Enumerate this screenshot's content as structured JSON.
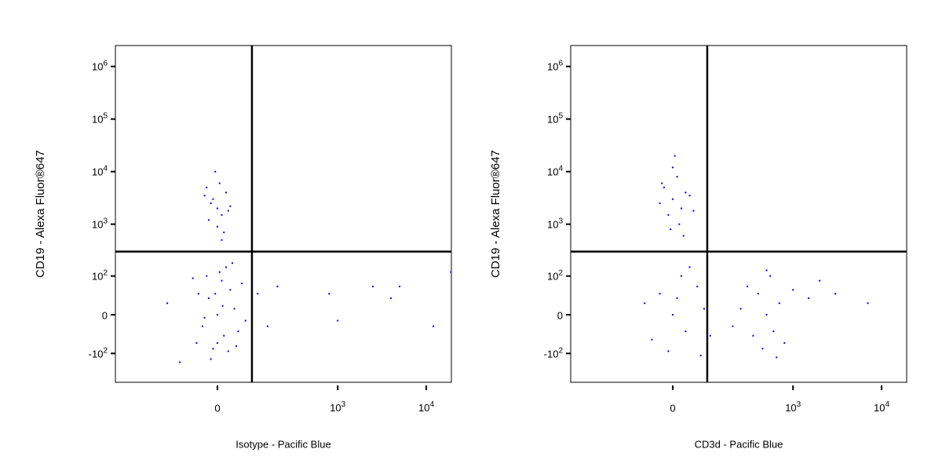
{
  "chart_data": [
    {
      "type": "scatter",
      "xlabel": "Isotype - Pacific Blue",
      "ylabel": "CD19 - Alexa Fluor®647",
      "color": "#0000ff",
      "xscale": "biexponential",
      "yscale": "biexponential",
      "xlim": [
        -620,
        19200
      ],
      "ylim": [
        -365,
        2500000
      ],
      "xticks": [
        0,
        {
          "value": 1000,
          "label": "10",
          "exponent": "3"
        },
        {
          "value": 10000,
          "label": "10",
          "exponent": "4"
        }
      ],
      "yticks": [
        {
          "value": 1000000,
          "label": "10",
          "exponent": "6"
        },
        {
          "value": 100000,
          "label": "10",
          "exponent": "5"
        },
        {
          "value": 10000,
          "label": "10",
          "exponent": "4"
        },
        {
          "value": 1000,
          "label": "10",
          "exponent": "3"
        },
        {
          "value": 100,
          "label": "10",
          "exponent": "2"
        },
        0,
        {
          "value": -100,
          "label": "-10",
          "exponent": "2"
        }
      ],
      "quadrant_gate": {
        "x": 90,
        "y": 300
      },
      "x": [
        0,
        -20,
        15,
        30,
        -35,
        10,
        -10,
        40,
        -45,
        25,
        5,
        -25,
        50,
        -50,
        60,
        20,
        -15,
        70,
        -60,
        35,
        0,
        -5,
        12,
        -30,
        45,
        110,
        150,
        200,
        -150,
        -100,
        0,
        -10,
        10,
        20,
        -20,
        5,
        -15,
        25,
        0,
        -5,
        15,
        -25,
        30,
        -30,
        10,
        800,
        2500,
        4000,
        5000,
        1000,
        12000,
        19000
      ],
      "values": [
        0,
        30,
        -40,
        50,
        -20,
        80,
        -80,
        10,
        40,
        -90,
        120,
        100,
        -30,
        -60,
        70,
        150,
        -130,
        -10,
        90,
        180,
        -60,
        40,
        15,
        -5,
        -70,
        40,
        -20,
        60,
        20,
        -150,
        2000,
        3000,
        1500,
        4000,
        1200,
        6000,
        2500,
        1800,
        900,
        10000,
        700,
        5000,
        2200,
        3500,
        500,
        40,
        60,
        30,
        60,
        -10,
        -20,
        120
      ]
    },
    {
      "type": "scatter",
      "xlabel": "CD3d - Pacific Blue",
      "ylabel": "CD19 - Alexa Fluor®647",
      "color": "#0000ff",
      "xscale": "biexponential",
      "yscale": "biexponential",
      "xlim": [
        -620,
        19200
      ],
      "ylim": [
        -365,
        2500000
      ],
      "xticks": [
        0,
        {
          "value": 1000,
          "label": "10",
          "exponent": "3"
        },
        {
          "value": 10000,
          "label": "10",
          "exponent": "4"
        }
      ],
      "yticks": [
        {
          "value": 1000000,
          "label": "10",
          "exponent": "6"
        },
        {
          "value": 100000,
          "label": "10",
          "exponent": "5"
        },
        {
          "value": 10000,
          "label": "10",
          "exponent": "4"
        },
        {
          "value": 1000,
          "label": "10",
          "exponent": "3"
        },
        {
          "value": 100,
          "label": "10",
          "exponent": "2"
        },
        0,
        {
          "value": -100,
          "label": "-10",
          "exponent": "2"
        }
      ],
      "quadrant_gate": {
        "x": 90,
        "y": 300
      },
      "x": [
        0,
        -20,
        20,
        10,
        -10,
        30,
        -30,
        0,
        15,
        -25,
        40,
        5,
        -5,
        25,
        50,
        0,
        -30,
        30,
        60,
        -50,
        80,
        20,
        -10,
        100,
        -70,
        40,
        70,
        10,
        500,
        400,
        600,
        300,
        700,
        450,
        550,
        350,
        800,
        250,
        1000,
        1500,
        2000,
        200,
        650,
        500,
        3000,
        7000
      ],
      "values": [
        3000,
        5000,
        2000,
        8000,
        1500,
        4000,
        2500,
        12000,
        1000,
        6000,
        3500,
        20000,
        800,
        600,
        1800,
        0,
        40,
        -30,
        60,
        -50,
        10,
        100,
        -90,
        -40,
        20,
        150,
        -110,
        30,
        0,
        40,
        -30,
        60,
        20,
        -80,
        100,
        -40,
        -60,
        10,
        50,
        30,
        80,
        -20,
        -120,
        130,
        40,
        20
      ]
    }
  ]
}
